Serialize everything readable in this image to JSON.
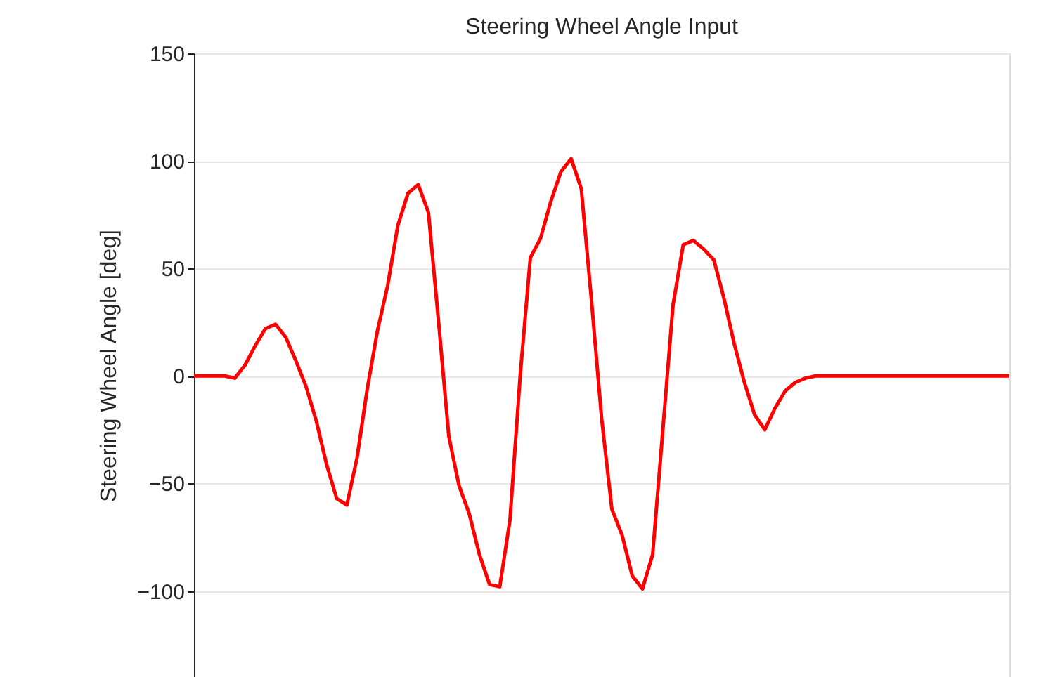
{
  "chart_data": {
    "type": "line",
    "title": "Steering Wheel Angle Input",
    "ylabel": "Steering Wheel Angle [deg]",
    "categories": [
      null,
      null,
      null,
      null,
      null,
      null,
      null,
      null,
      null,
      null,
      null,
      null,
      null,
      null,
      null,
      null,
      null,
      null,
      null,
      null,
      null,
      null,
      null,
      null,
      null,
      null,
      null,
      null,
      null,
      null,
      null,
      null,
      null,
      null,
      null,
      null,
      null,
      null,
      null,
      null,
      null,
      null,
      null,
      null,
      null,
      null,
      null,
      null,
      null,
      null,
      null,
      null,
      null,
      null,
      null,
      null,
      null,
      null,
      null,
      null,
      null,
      null,
      null,
      null,
      null,
      null,
      null,
      null,
      null,
      null,
      null,
      null,
      null,
      null,
      null,
      null,
      null,
      null,
      null,
      null,
      null
    ],
    "series": [
      {
        "color": "#ff0000",
        "values": [
          0,
          0,
          0,
          0,
          -1,
          5,
          14,
          22,
          24,
          18,
          7,
          -5,
          -21,
          -41,
          -57,
          -60,
          -38,
          -6,
          21,
          42,
          70,
          85,
          89,
          76,
          25,
          -28,
          -51,
          -64,
          -83,
          -97,
          -98,
          -67,
          0,
          55,
          64,
          81,
          95,
          101,
          87,
          35,
          -20,
          -62,
          -74,
          -93,
          -99,
          -83,
          -25,
          33,
          61,
          63,
          59,
          54,
          36,
          15,
          -3,
          -18,
          -25,
          -15,
          -7,
          -3,
          -1,
          0,
          0,
          0,
          0,
          0,
          0,
          0,
          0,
          0,
          0,
          0,
          0,
          0,
          0,
          0,
          0,
          0,
          0,
          0,
          0
        ]
      }
    ],
    "ylim": [
      -140,
      150
    ],
    "yticks": [
      -100,
      -50,
      0,
      50,
      100,
      150
    ],
    "grid": "y",
    "legend": false,
    "tick_labels": "y",
    "marker": "none",
    "line_style": "solid"
  }
}
